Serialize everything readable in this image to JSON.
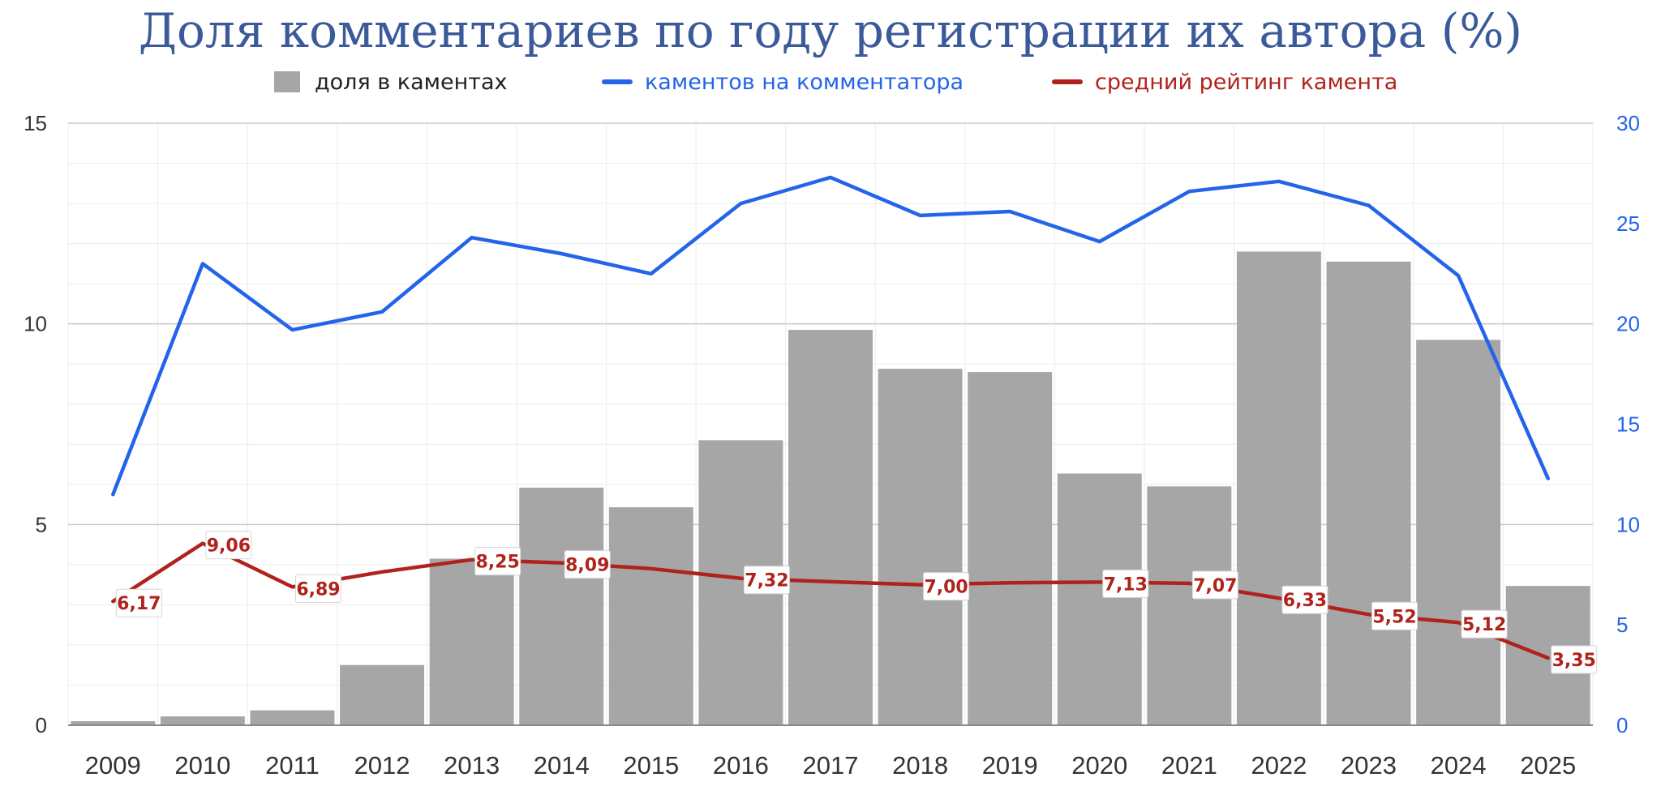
{
  "chart_data": {
    "type": "bar",
    "title": "Доля комментариев по году регистрации их автора (%)",
    "categories": [
      "2009",
      "2010",
      "2011",
      "2012",
      "2013",
      "2014",
      "2015",
      "2016",
      "2017",
      "2018",
      "2019",
      "2020",
      "2021",
      "2022",
      "2023",
      "2024",
      "2025"
    ],
    "series": [
      {
        "name": "доля в каментах",
        "type": "bar",
        "axis": "left",
        "color": "#a6a6a6",
        "values": [
          0.1,
          0.22,
          0.37,
          1.5,
          4.15,
          5.92,
          5.43,
          7.1,
          9.85,
          8.88,
          8.8,
          6.27,
          5.95,
          11.8,
          11.55,
          9.6,
          3.47
        ]
      },
      {
        "name": "каментов на комментатора",
        "type": "line",
        "axis": "right",
        "color": "#2364ea",
        "values": [
          11.5,
          23.0,
          19.7,
          20.6,
          24.3,
          23.5,
          22.5,
          26.0,
          27.3,
          25.4,
          25.6,
          24.1,
          26.6,
          27.1,
          25.9,
          22.4,
          12.3
        ]
      },
      {
        "name": "средний рейтинг камента",
        "type": "line",
        "axis": "right",
        "color": "#b0231c",
        "values": [
          6.17,
          9.06,
          6.89,
          7.64,
          8.25,
          8.09,
          7.8,
          7.32,
          7.15,
          7.0,
          7.1,
          7.13,
          7.07,
          6.33,
          5.52,
          5.12,
          3.35
        ],
        "labels": [
          "6,17",
          "9,06",
          "6,89",
          "",
          "8,25",
          "8,09",
          "",
          "7,32",
          "",
          "7,00",
          "",
          "7,13",
          "7,07",
          "6,33",
          "5,52",
          "5,12",
          "3,35"
        ]
      }
    ],
    "y_left": {
      "min": 0,
      "max": 15,
      "ticks": [
        "0",
        "5",
        "10",
        "15"
      ]
    },
    "y_right": {
      "min": 0,
      "max": 30,
      "ticks": [
        "0",
        "5",
        "10",
        "15",
        "20",
        "25",
        "30"
      ]
    },
    "legend_position": "top",
    "grid": true
  }
}
